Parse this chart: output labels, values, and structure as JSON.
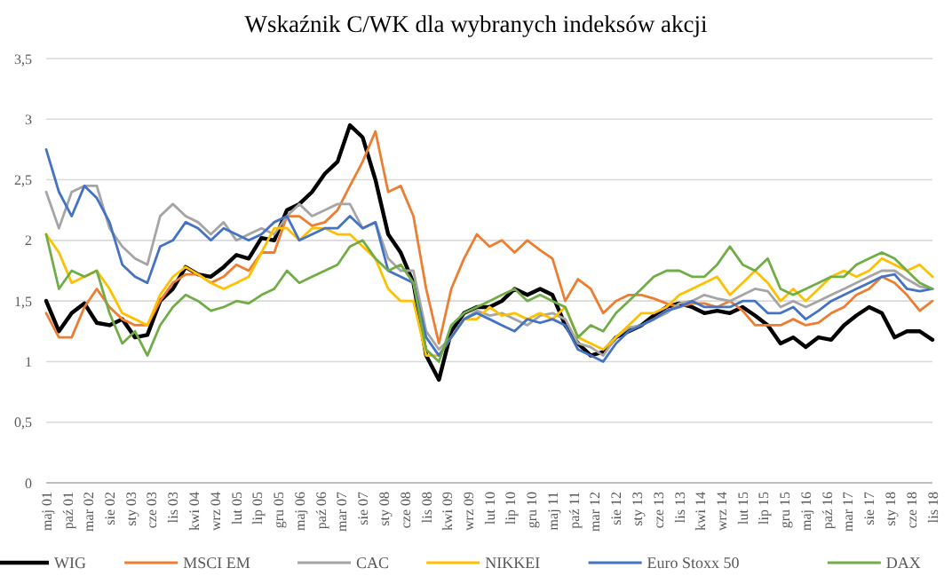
{
  "chart_data": {
    "type": "line",
    "title": "Wskaźnik C/WK dla wybranych indeksów akcji",
    "x": [
      "2001-05",
      "2001-08",
      "2001-11",
      "2002-02",
      "2002-05",
      "2002-08",
      "2002-11",
      "2003-02",
      "2003-05",
      "2003-08",
      "2003-11",
      "2004-02",
      "2004-05",
      "2004-08",
      "2004-11",
      "2005-02",
      "2005-05",
      "2005-08",
      "2005-11",
      "2006-02",
      "2006-05",
      "2006-08",
      "2006-11",
      "2007-02",
      "2007-05",
      "2007-08",
      "2007-11",
      "2008-02",
      "2008-05",
      "2008-08",
      "2008-11",
      "2009-02",
      "2009-05",
      "2009-08",
      "2009-11",
      "2010-02",
      "2010-05",
      "2010-08",
      "2010-11",
      "2011-02",
      "2011-05",
      "2011-08",
      "2011-11",
      "2012-02",
      "2012-05",
      "2012-08",
      "2012-11",
      "2013-02",
      "2013-05",
      "2013-08",
      "2013-11",
      "2014-02",
      "2014-05",
      "2014-08",
      "2014-11",
      "2015-02",
      "2015-05",
      "2015-08",
      "2015-11",
      "2016-02",
      "2016-05",
      "2016-08",
      "2016-11",
      "2017-02",
      "2017-05",
      "2017-08",
      "2017-11",
      "2018-02",
      "2018-05",
      "2018-08",
      "2018-11"
    ],
    "series": [
      {
        "name": "WIG",
        "color": "#000000",
        "values": [
          1.5,
          1.25,
          1.4,
          1.48,
          1.32,
          1.3,
          1.35,
          1.2,
          1.22,
          1.5,
          1.6,
          1.78,
          1.72,
          1.7,
          1.78,
          1.88,
          1.85,
          2.02,
          2.0,
          2.25,
          2.3,
          2.4,
          2.55,
          2.65,
          2.95,
          2.85,
          2.5,
          2.05,
          1.9,
          1.65,
          1.05,
          0.85,
          1.25,
          1.4,
          1.45,
          1.45,
          1.5,
          1.6,
          1.55,
          1.6,
          1.55,
          1.3,
          1.15,
          1.05,
          1.08,
          1.2,
          1.25,
          1.3,
          1.38,
          1.45,
          1.48,
          1.45,
          1.4,
          1.42,
          1.4,
          1.45,
          1.38,
          1.3,
          1.15,
          1.2,
          1.12,
          1.2,
          1.18,
          1.3,
          1.38,
          1.45,
          1.4,
          1.2,
          1.25,
          1.25,
          1.18
        ]
      },
      {
        "name": "MSCI EM",
        "color": "#ed7d31",
        "values": [
          1.4,
          1.2,
          1.2,
          1.45,
          1.6,
          1.45,
          1.35,
          1.3,
          1.3,
          1.5,
          1.65,
          1.72,
          1.72,
          1.65,
          1.7,
          1.8,
          1.75,
          1.9,
          1.9,
          2.2,
          2.2,
          2.12,
          2.15,
          2.25,
          2.45,
          2.65,
          2.9,
          2.4,
          2.45,
          2.2,
          1.6,
          1.15,
          1.6,
          1.85,
          2.05,
          1.95,
          2.0,
          1.9,
          2.0,
          1.92,
          1.85,
          1.5,
          1.68,
          1.6,
          1.4,
          1.5,
          1.55,
          1.55,
          1.52,
          1.48,
          1.45,
          1.48,
          1.48,
          1.45,
          1.5,
          1.42,
          1.3,
          1.3,
          1.3,
          1.35,
          1.3,
          1.32,
          1.4,
          1.45,
          1.55,
          1.6,
          1.7,
          1.65,
          1.55,
          1.42,
          1.5
        ]
      },
      {
        "name": "CAC",
        "color": "#a5a5a5",
        "values": [
          2.4,
          2.1,
          2.4,
          2.45,
          2.45,
          2.1,
          1.95,
          1.85,
          1.8,
          2.2,
          2.3,
          2.2,
          2.15,
          2.05,
          2.15,
          2.0,
          2.05,
          2.1,
          2.05,
          2.2,
          2.3,
          2.2,
          2.25,
          2.3,
          2.3,
          2.1,
          2.15,
          1.85,
          1.75,
          1.75,
          1.25,
          1.1,
          1.2,
          1.35,
          1.42,
          1.38,
          1.4,
          1.35,
          1.3,
          1.38,
          1.4,
          1.35,
          1.15,
          1.12,
          1.05,
          1.2,
          1.28,
          1.3,
          1.35,
          1.4,
          1.48,
          1.5,
          1.55,
          1.52,
          1.5,
          1.55,
          1.6,
          1.58,
          1.45,
          1.5,
          1.45,
          1.5,
          1.55,
          1.6,
          1.65,
          1.7,
          1.75,
          1.75,
          1.68,
          1.62,
          1.6
        ]
      },
      {
        "name": "NIKKEI",
        "color": "#ffc000",
        "values": [
          2.05,
          1.9,
          1.65,
          1.7,
          1.75,
          1.6,
          1.4,
          1.35,
          1.3,
          1.55,
          1.7,
          1.78,
          1.72,
          1.65,
          1.6,
          1.65,
          1.7,
          1.9,
          2.1,
          2.1,
          2.0,
          2.1,
          2.1,
          2.05,
          2.05,
          1.95,
          1.85,
          1.6,
          1.5,
          1.5,
          1.05,
          1.05,
          1.2,
          1.35,
          1.35,
          1.45,
          1.38,
          1.4,
          1.35,
          1.4,
          1.35,
          1.45,
          1.2,
          1.15,
          1.1,
          1.2,
          1.3,
          1.4,
          1.4,
          1.45,
          1.55,
          1.6,
          1.65,
          1.7,
          1.55,
          1.65,
          1.75,
          1.65,
          1.5,
          1.6,
          1.5,
          1.6,
          1.7,
          1.75,
          1.7,
          1.75,
          1.85,
          1.8,
          1.75,
          1.8,
          1.7
        ]
      },
      {
        "name": "Euro Stoxx 50",
        "color": "#4472c4",
        "values": [
          2.75,
          2.4,
          2.2,
          2.45,
          2.35,
          2.15,
          1.8,
          1.7,
          1.65,
          1.95,
          2.0,
          2.15,
          2.1,
          2.0,
          2.1,
          2.05,
          2.0,
          2.05,
          2.15,
          2.2,
          2.0,
          2.05,
          2.1,
          2.1,
          2.2,
          2.1,
          2.15,
          1.75,
          1.7,
          1.65,
          1.2,
          1.05,
          1.2,
          1.35,
          1.4,
          1.35,
          1.3,
          1.25,
          1.35,
          1.32,
          1.35,
          1.3,
          1.1,
          1.05,
          1.0,
          1.15,
          1.25,
          1.3,
          1.35,
          1.42,
          1.45,
          1.5,
          1.45,
          1.45,
          1.45,
          1.5,
          1.5,
          1.4,
          1.4,
          1.45,
          1.35,
          1.42,
          1.5,
          1.55,
          1.6,
          1.65,
          1.7,
          1.72,
          1.6,
          1.58,
          1.6
        ]
      },
      {
        "name": "DAX",
        "color": "#70ad47",
        "values": [
          2.05,
          1.6,
          1.75,
          1.7,
          1.75,
          1.4,
          1.15,
          1.25,
          1.05,
          1.3,
          1.45,
          1.55,
          1.5,
          1.42,
          1.45,
          1.5,
          1.48,
          1.55,
          1.6,
          1.75,
          1.65,
          1.7,
          1.75,
          1.8,
          1.95,
          2.0,
          1.85,
          1.75,
          1.8,
          1.65,
          1.1,
          1.0,
          1.3,
          1.4,
          1.45,
          1.5,
          1.55,
          1.6,
          1.5,
          1.55,
          1.5,
          1.45,
          1.2,
          1.3,
          1.25,
          1.4,
          1.5,
          1.6,
          1.7,
          1.75,
          1.75,
          1.7,
          1.7,
          1.8,
          1.95,
          1.8,
          1.75,
          1.85,
          1.6,
          1.55,
          1.6,
          1.65,
          1.7,
          1.7,
          1.8,
          1.85,
          1.9,
          1.85,
          1.75,
          1.65,
          1.6
        ]
      }
    ],
    "xlim": [
      "2001-05",
      "2018-11"
    ],
    "xticks": [
      {
        "value": "2001-05",
        "label": "maj 01"
      },
      {
        "value": "2001-10",
        "label": "paź 01"
      },
      {
        "value": "2002-03",
        "label": "mar 02"
      },
      {
        "value": "2002-08",
        "label": "sie 02"
      },
      {
        "value": "2003-01",
        "label": "sty 03"
      },
      {
        "value": "2003-06",
        "label": "cze 03"
      },
      {
        "value": "2003-11",
        "label": "lis 03"
      },
      {
        "value": "2004-04",
        "label": "kwi 04"
      },
      {
        "value": "2004-09",
        "label": "wrz 04"
      },
      {
        "value": "2005-02",
        "label": "lut 05"
      },
      {
        "value": "2005-07",
        "label": "lip 05"
      },
      {
        "value": "2005-12",
        "label": "gru 05"
      },
      {
        "value": "2006-05",
        "label": "maj 06"
      },
      {
        "value": "2006-10",
        "label": "paź 06"
      },
      {
        "value": "2007-03",
        "label": "mar 07"
      },
      {
        "value": "2007-08",
        "label": "sie 07"
      },
      {
        "value": "2008-01",
        "label": "sty 08"
      },
      {
        "value": "2008-06",
        "label": "cze 08"
      },
      {
        "value": "2008-11",
        "label": "lis 08"
      },
      {
        "value": "2009-04",
        "label": "kwi 09"
      },
      {
        "value": "2009-09",
        "label": "wrz 09"
      },
      {
        "value": "2010-02",
        "label": "lut 10"
      },
      {
        "value": "2010-07",
        "label": "lip 10"
      },
      {
        "value": "2010-12",
        "label": "gru 10"
      },
      {
        "value": "2011-05",
        "label": "maj 11"
      },
      {
        "value": "2011-10",
        "label": "paź 11"
      },
      {
        "value": "2012-03",
        "label": "mar 12"
      },
      {
        "value": "2012-08",
        "label": "sie 12"
      },
      {
        "value": "2013-01",
        "label": "sty 13"
      },
      {
        "value": "2013-06",
        "label": "cze 13"
      },
      {
        "value": "2013-11",
        "label": "lis 13"
      },
      {
        "value": "2014-04",
        "label": "kwi 14"
      },
      {
        "value": "2014-09",
        "label": "wrz 14"
      },
      {
        "value": "2015-02",
        "label": "lut 15"
      },
      {
        "value": "2015-07",
        "label": "lip 15"
      },
      {
        "value": "2015-12",
        "label": "gru 15"
      },
      {
        "value": "2016-05",
        "label": "maj 16"
      },
      {
        "value": "2016-10",
        "label": "paź 16"
      },
      {
        "value": "2017-03",
        "label": "mar 17"
      },
      {
        "value": "2017-08",
        "label": "sie 17"
      },
      {
        "value": "2018-01",
        "label": "sty 18"
      },
      {
        "value": "2018-06",
        "label": "cze 18"
      },
      {
        "value": "2018-11",
        "label": "lis 18"
      }
    ],
    "ylim": [
      0,
      3.5
    ],
    "yticks": [
      0,
      {
        "value": 0.5,
        "label": "0,5"
      },
      1,
      {
        "value": 1.5,
        "label": "1,5"
      },
      2,
      {
        "value": 2.5,
        "label": "2,5"
      },
      3,
      {
        "value": 3.5,
        "label": "3,5"
      }
    ],
    "grid": "y",
    "legend": "bottom",
    "marker": "none",
    "line_style": "solid"
  }
}
